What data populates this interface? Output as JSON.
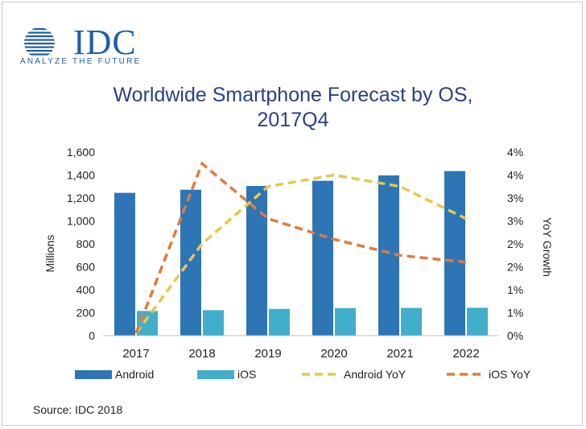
{
  "brand": {
    "name": "IDC",
    "tagline": "ANALYZE THE FUTURE",
    "color": "#1f5da8"
  },
  "footer": {
    "source": "Source: IDC 2018"
  },
  "chart_data": {
    "type": "bar",
    "title_line1": "Worldwide Smartphone Forecast by OS,",
    "title_line2": "2017Q4",
    "categories": [
      "2017",
      "2018",
      "2019",
      "2020",
      "2021",
      "2022"
    ],
    "ylabel": "Millions",
    "y2label": "YoY Growth",
    "ylim": [
      0,
      1600
    ],
    "y_ticks": [
      "0",
      "200",
      "400",
      "600",
      "800",
      "1,000",
      "1,200",
      "1,400",
      "1,600"
    ],
    "y2_ticks": [
      "0%",
      "1%",
      "1%",
      "2%",
      "2%",
      "3%",
      "3%",
      "4%",
      "4%"
    ],
    "y2lim": [
      0,
      4
    ],
    "series": [
      {
        "name": "Android",
        "kind": "bar",
        "axis": "left",
        "color": "#2e75b6",
        "values": [
          1245,
          1272,
          1305,
          1350,
          1397,
          1435
        ]
      },
      {
        "name": "iOS",
        "kind": "bar",
        "axis": "left",
        "color": "#41aecb",
        "values": [
          215,
          222,
          233,
          240,
          242,
          243
        ]
      },
      {
        "name": "Android YoY",
        "kind": "dashed-line",
        "axis": "right",
        "color": "#e6c84a",
        "values": [
          0.05,
          2.0,
          3.25,
          3.5,
          3.25,
          2.55
        ]
      },
      {
        "name": "iOS YoY",
        "kind": "dashed-line",
        "axis": "right",
        "color": "#e07b3c",
        "values": [
          0.05,
          3.75,
          2.55,
          2.1,
          1.75,
          1.6
        ]
      }
    ],
    "legend_position": "bottom",
    "grid": false
  }
}
